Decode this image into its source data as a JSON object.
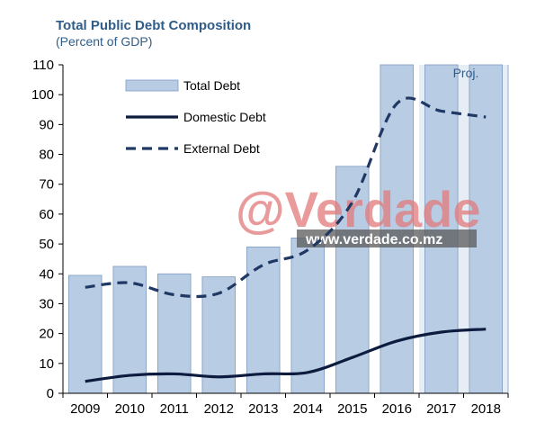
{
  "header": {
    "title": "Total Public Debt Composition",
    "subtitle": "(Percent of GDP)"
  },
  "watermark": {
    "brand": "@Verdade",
    "url": "www.verdade.co.mz"
  },
  "chart_data": {
    "type": "bar",
    "categories": [
      "2009",
      "2010",
      "2011",
      "2012",
      "2013",
      "2014",
      "2015",
      "2016",
      "2017",
      "2018"
    ],
    "ylim": [
      0,
      110
    ],
    "yticks": [
      0,
      10,
      20,
      30,
      40,
      50,
      60,
      70,
      80,
      90,
      100,
      110
    ],
    "projection_label": "Proj.",
    "projection_from": "2017",
    "legend_position": "top-left",
    "series": [
      {
        "name": "Total Debt",
        "kind": "bar",
        "color": "#b8cce4",
        "values": [
          39.5,
          42.5,
          40,
          39,
          49,
          52,
          76,
          110,
          110,
          110
        ]
      },
      {
        "name": "Domestic Debt",
        "kind": "line",
        "style": "solid",
        "color": "#0d1b3e",
        "values": [
          4,
          6,
          6.5,
          5.5,
          6.5,
          7,
          12,
          17.5,
          20.5,
          21.5
        ]
      },
      {
        "name": "External Debt",
        "kind": "line",
        "style": "dashed",
        "color": "#1f3864",
        "values": [
          35.5,
          37,
          33,
          33.5,
          43,
          48,
          64,
          97,
          94.5,
          92.5
        ]
      }
    ]
  }
}
